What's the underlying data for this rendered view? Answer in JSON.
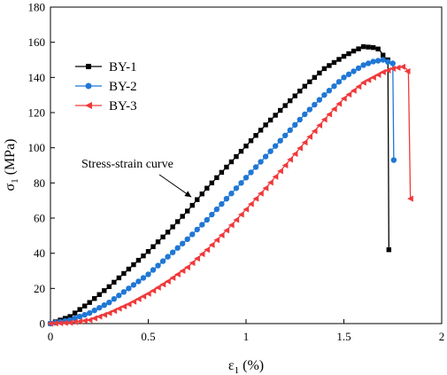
{
  "chart_data": {
    "type": "line",
    "xlabel": "ε",
    "xlabel_sub": "1",
    "xlabel_unit": " (%)",
    "ylabel": "σ",
    "ylabel_sub": "1",
    "ylabel_unit": " (MPa)",
    "xlim": [
      0,
      2
    ],
    "ylim": [
      0,
      180
    ],
    "xticks": [
      0,
      0.5,
      1,
      1.5,
      2
    ],
    "xtick_labels": [
      "0",
      "0.5",
      "1",
      "1.5",
      "2"
    ],
    "yticks": [
      0,
      20,
      40,
      60,
      80,
      100,
      120,
      140,
      160,
      180
    ],
    "ytick_labels": [
      "0",
      "20",
      "40",
      "60",
      "80",
      "100",
      "120",
      "140",
      "160",
      "180"
    ],
    "grid": false,
    "legend_position": "upper-left",
    "annotation": {
      "text": "Stress-strain curve",
      "x": 0.72,
      "y": 72
    },
    "series": [
      {
        "name": "BY-1",
        "color": "#000000",
        "marker": "square",
        "marker_step": 0.025,
        "points": [
          [
            0,
            0
          ],
          [
            0.1,
            4
          ],
          [
            0.2,
            12
          ],
          [
            0.3,
            21
          ],
          [
            0.4,
            31
          ],
          [
            0.5,
            41
          ],
          [
            0.6,
            52
          ],
          [
            0.7,
            64
          ],
          [
            0.8,
            77
          ],
          [
            0.9,
            89
          ],
          [
            1.0,
            101
          ],
          [
            1.1,
            113
          ],
          [
            1.2,
            124
          ],
          [
            1.3,
            135
          ],
          [
            1.4,
            145
          ],
          [
            1.5,
            152
          ],
          [
            1.55,
            155
          ],
          [
            1.6,
            157.5
          ],
          [
            1.65,
            157
          ],
          [
            1.68,
            156
          ],
          [
            1.71,
            151
          ],
          [
            1.725,
            150
          ],
          [
            1.73,
            42
          ]
        ]
      },
      {
        "name": "BY-2",
        "color": "#1f77d4",
        "marker": "circle",
        "marker_step": 0.025,
        "points": [
          [
            0,
            0
          ],
          [
            0.1,
            2
          ],
          [
            0.2,
            6
          ],
          [
            0.3,
            12
          ],
          [
            0.4,
            20
          ],
          [
            0.5,
            28
          ],
          [
            0.6,
            38
          ],
          [
            0.7,
            48
          ],
          [
            0.8,
            59
          ],
          [
            0.9,
            71
          ],
          [
            1.0,
            83
          ],
          [
            1.1,
            95
          ],
          [
            1.2,
            107
          ],
          [
            1.3,
            119
          ],
          [
            1.4,
            130
          ],
          [
            1.5,
            140
          ],
          [
            1.6,
            147
          ],
          [
            1.65,
            149
          ],
          [
            1.7,
            150
          ],
          [
            1.72,
            149
          ],
          [
            1.75,
            148
          ],
          [
            1.755,
            93
          ]
        ]
      },
      {
        "name": "BY-3",
        "color": "#f0393b",
        "marker": "left-triangle",
        "marker_step": 0.025,
        "points": [
          [
            0,
            0
          ],
          [
            0.1,
            0.5
          ],
          [
            0.2,
            2
          ],
          [
            0.3,
            6
          ],
          [
            0.4,
            11
          ],
          [
            0.5,
            17
          ],
          [
            0.6,
            24
          ],
          [
            0.7,
            32
          ],
          [
            0.8,
            42
          ],
          [
            0.9,
            53
          ],
          [
            1.0,
            65
          ],
          [
            1.1,
            77
          ],
          [
            1.2,
            90
          ],
          [
            1.3,
            103
          ],
          [
            1.4,
            116
          ],
          [
            1.5,
            128
          ],
          [
            1.6,
            137
          ],
          [
            1.7,
            143
          ],
          [
            1.75,
            145
          ],
          [
            1.8,
            146
          ],
          [
            1.82,
            145
          ],
          [
            1.83,
            142
          ],
          [
            1.84,
            71
          ]
        ]
      }
    ]
  }
}
